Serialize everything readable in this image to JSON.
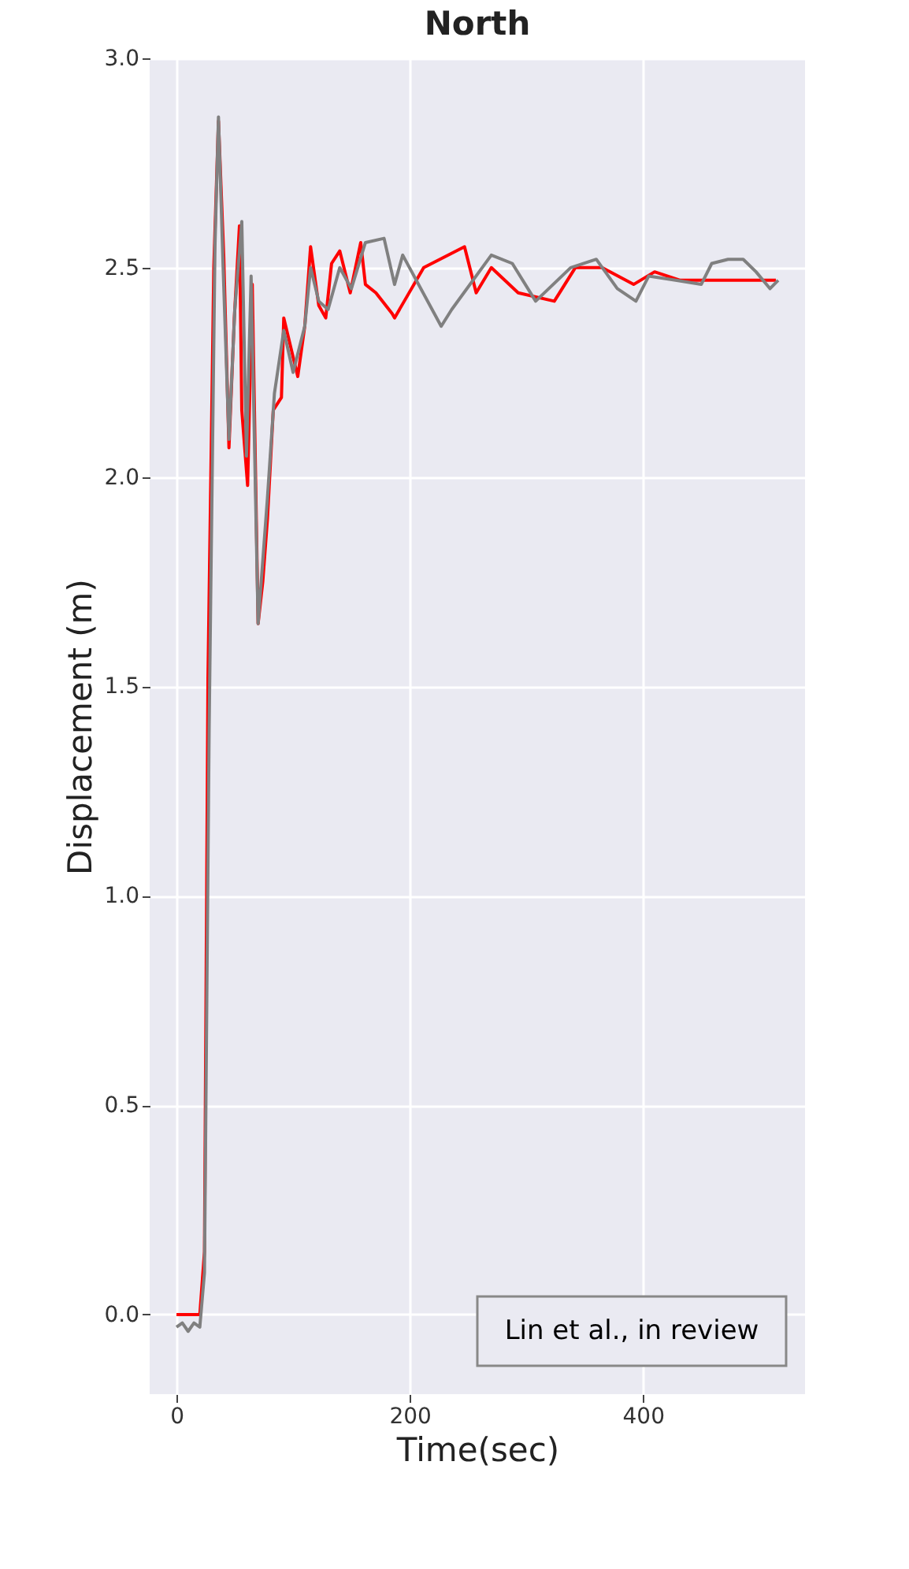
{
  "chart_data": {
    "type": "line",
    "title": "North",
    "xlabel": "Time(sec)",
    "ylabel": "Displacement (m)",
    "xlim": [
      -23,
      539
    ],
    "ylim": [
      -0.19,
      3.0
    ],
    "xticks": [
      0,
      200,
      400
    ],
    "yticks": [
      {
        "value": 0,
        "label": "0.0"
      },
      0.5,
      {
        "value": 1,
        "label": "1.0"
      },
      1.5,
      {
        "value": 2,
        "label": "2.0"
      },
      2.5,
      {
        "value": 3,
        "label": "3.0"
      }
    ],
    "grid": true,
    "marker": "none",
    "line_style": "solid",
    "annotations": [
      "Lin et al., in review"
    ],
    "series": [
      {
        "color": "#ff0000",
        "x": [
          0,
          10,
          20,
          24,
          27,
          32,
          36,
          40.5,
          45,
          49.6,
          54,
          56,
          61,
          65,
          70,
          74,
          78,
          83,
          90,
          92,
          104,
          110,
          115,
          122,
          128,
          133,
          140,
          149,
          158,
          162,
          171,
          185,
          187,
          212,
          247,
          257,
          270,
          293,
          324,
          342,
          365,
          392,
          410,
          432,
          514
        ],
        "values": [
          0.0,
          0.0,
          0.0,
          0.15,
          1.52,
          2.5,
          2.85,
          2.53,
          2.07,
          2.38,
          2.6,
          2.16,
          1.98,
          2.46,
          1.65,
          1.75,
          1.9,
          2.16,
          2.19,
          2.38,
          2.24,
          2.36,
          2.55,
          2.41,
          2.38,
          2.51,
          2.54,
          2.44,
          2.56,
          2.46,
          2.44,
          2.39,
          2.38,
          2.5,
          2.55,
          2.44,
          2.5,
          2.44,
          2.42,
          2.5,
          2.5,
          2.46,
          2.49,
          2.47,
          2.47
        ]
      },
      {
        "color": "#808080",
        "x": [
          0,
          5,
          10,
          15,
          20,
          24,
          28,
          33,
          36,
          40,
          45,
          50,
          56,
          60,
          64,
          70,
          74,
          78,
          84,
          92,
          100,
          110,
          115,
          122,
          130,
          140,
          150,
          162,
          178,
          187,
          194,
          227,
          236,
          270,
          288,
          308,
          338,
          360,
          378,
          394,
          405,
          428,
          450,
          459,
          473,
          486,
          497,
          509,
          516
        ],
        "values": [
          -0.03,
          -0.02,
          -0.04,
          -0.02,
          -0.03,
          0.1,
          1.4,
          2.55,
          2.86,
          2.5,
          2.09,
          2.4,
          2.61,
          2.05,
          2.48,
          1.65,
          1.8,
          1.95,
          2.2,
          2.35,
          2.25,
          2.36,
          2.5,
          2.42,
          2.4,
          2.5,
          2.45,
          2.56,
          2.57,
          2.46,
          2.53,
          2.36,
          2.4,
          2.53,
          2.51,
          2.42,
          2.5,
          2.52,
          2.45,
          2.42,
          2.48,
          2.47,
          2.46,
          2.51,
          2.52,
          2.52,
          2.49,
          2.45,
          2.47
        ]
      }
    ]
  }
}
